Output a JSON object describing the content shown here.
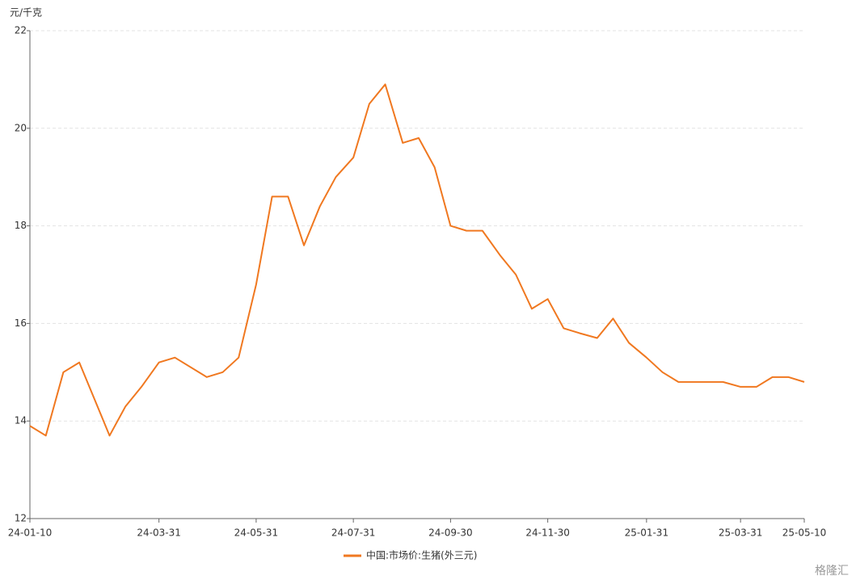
{
  "chart_data": {
    "type": "line",
    "y_unit": "元/千克",
    "x": [
      "24-01-10",
      "24-01-20",
      "24-01-31",
      "24-02-10",
      "24-02-29",
      "24-03-10",
      "24-03-20",
      "24-03-31",
      "24-04-10",
      "24-04-30",
      "24-05-10",
      "24-05-20",
      "24-05-31",
      "24-06-10",
      "24-06-20",
      "24-06-30",
      "24-07-10",
      "24-07-20",
      "24-07-31",
      "24-08-10",
      "24-08-20",
      "24-08-31",
      "24-09-10",
      "24-09-20",
      "24-09-30",
      "24-10-10",
      "24-10-20",
      "24-10-31",
      "24-11-10",
      "24-11-20",
      "24-11-30",
      "24-12-10",
      "24-12-20",
      "24-12-31",
      "25-01-10",
      "25-01-20",
      "25-01-31",
      "25-02-10",
      "25-02-20",
      "25-02-28",
      "25-03-10",
      "25-03-20",
      "25-03-31",
      "25-04-10",
      "25-04-20",
      "25-04-30",
      "25-05-10"
    ],
    "series": [
      {
        "name": "中国:市场价:生猪(外三元)",
        "color": "#f07820",
        "values": [
          13.9,
          13.7,
          15.0,
          15.2,
          13.7,
          14.3,
          14.7,
          15.2,
          15.3,
          14.9,
          15.0,
          15.3,
          16.8,
          18.6,
          18.6,
          17.6,
          18.4,
          19.0,
          19.4,
          20.5,
          20.9,
          19.7,
          19.8,
          19.2,
          18.0,
          17.9,
          17.9,
          17.4,
          17.0,
          16.3,
          16.5,
          15.9,
          15.8,
          15.7,
          16.1,
          15.6,
          15.3,
          15.0,
          14.8,
          14.8,
          14.8,
          14.8,
          14.7,
          14.7,
          14.9,
          14.9,
          14.8
        ]
      }
    ],
    "xlim": [
      "24-01-10",
      "25-05-10"
    ],
    "xticks": [
      "24-01-10",
      "24-03-31",
      "24-05-31",
      "24-07-31",
      "24-09-30",
      "24-11-30",
      "25-01-31",
      "25-03-31",
      "25-05-10"
    ],
    "ylim": [
      12,
      22
    ],
    "yticks": [
      12,
      14,
      16,
      18,
      20,
      22
    ],
    "grid": true,
    "legend": "bottom",
    "watermark": "格隆汇"
  }
}
